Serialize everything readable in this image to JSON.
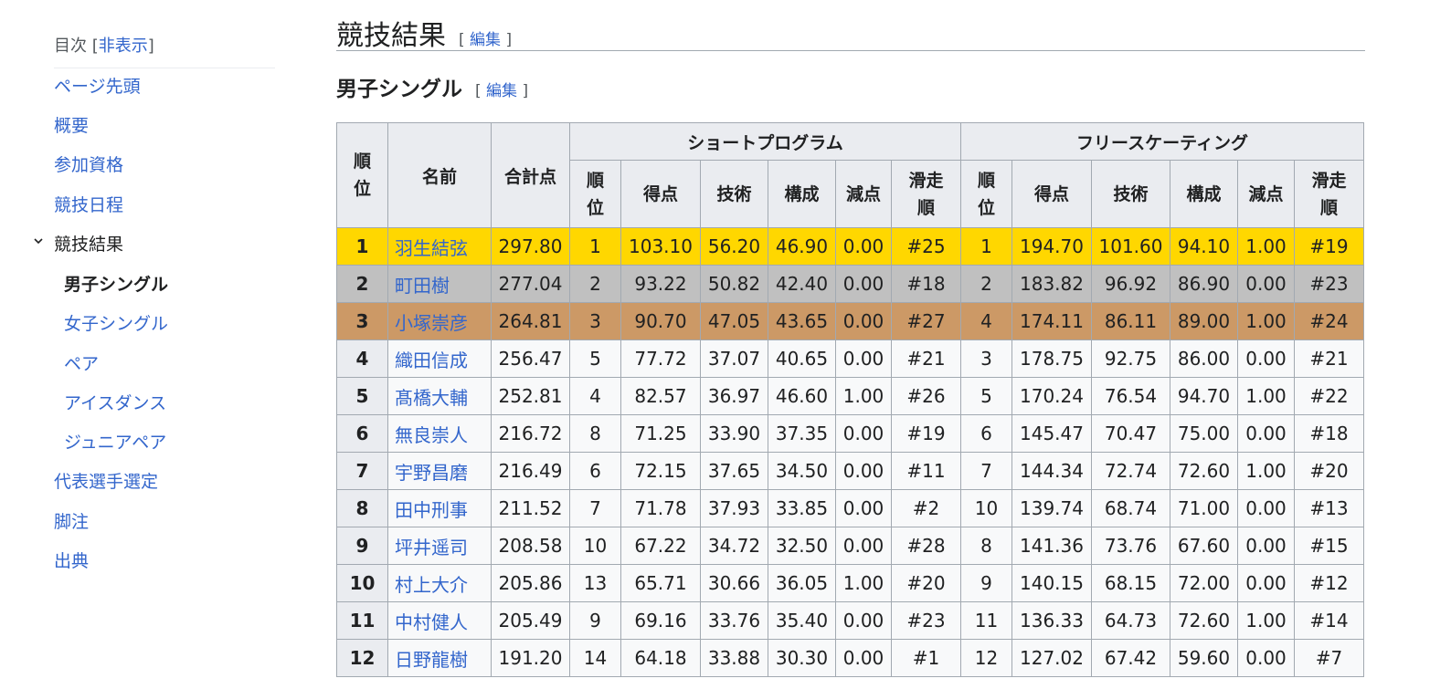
{
  "toc": {
    "title": "目次",
    "toggle_label": "非表示",
    "items": [
      {
        "label": "ページ先頭",
        "level": 1
      },
      {
        "label": "概要",
        "level": 1
      },
      {
        "label": "参加資格",
        "level": 1
      },
      {
        "label": "競技日程",
        "level": 1
      },
      {
        "label": "競技結果",
        "level": 1
      },
      {
        "label": "男子シングル",
        "level": 2
      },
      {
        "label": "女子シングル",
        "level": 2
      },
      {
        "label": "ペア",
        "level": 2
      },
      {
        "label": "アイスダンス",
        "level": 2
      },
      {
        "label": "ジュニアペア",
        "level": 2
      },
      {
        "label": "代表選手選定",
        "level": 1
      },
      {
        "label": "脚注",
        "level": 1
      },
      {
        "label": "出典",
        "level": 1
      }
    ]
  },
  "section": {
    "title": "競技結果",
    "edit_label": "編集"
  },
  "subsection": {
    "title": "男子シングル",
    "edit_label": "編集"
  },
  "table": {
    "headers": {
      "rank": "順位",
      "name": "名前",
      "total": "合計点",
      "sp_group": "ショートプログラム",
      "fs_group": "フリースケーティング",
      "sub": [
        "順位",
        "得点",
        "技術",
        "構成",
        "減点",
        "滑走順"
      ]
    },
    "rows": [
      {
        "rank": "1",
        "name": "羽生結弦",
        "total": "297.80",
        "sp": [
          "1",
          "103.10",
          "56.20",
          "46.90",
          "0.00",
          "#25"
        ],
        "fs": [
          "1",
          "194.70",
          "101.60",
          "94.10",
          "1.00",
          "#19"
        ]
      },
      {
        "rank": "2",
        "name": "町田樹",
        "total": "277.04",
        "sp": [
          "2",
          "93.22",
          "50.82",
          "42.40",
          "0.00",
          "#18"
        ],
        "fs": [
          "2",
          "183.82",
          "96.92",
          "86.90",
          "0.00",
          "#23"
        ]
      },
      {
        "rank": "3",
        "name": "小塚崇彦",
        "total": "264.81",
        "sp": [
          "3",
          "90.70",
          "47.05",
          "43.65",
          "0.00",
          "#27"
        ],
        "fs": [
          "4",
          "174.11",
          "86.11",
          "89.00",
          "1.00",
          "#24"
        ]
      },
      {
        "rank": "4",
        "name": "織田信成",
        "total": "256.47",
        "sp": [
          "5",
          "77.72",
          "37.07",
          "40.65",
          "0.00",
          "#21"
        ],
        "fs": [
          "3",
          "178.75",
          "92.75",
          "86.00",
          "0.00",
          "#21"
        ]
      },
      {
        "rank": "5",
        "name": "髙橋大輔",
        "total": "252.81",
        "sp": [
          "4",
          "82.57",
          "36.97",
          "46.60",
          "1.00",
          "#26"
        ],
        "fs": [
          "5",
          "170.24",
          "76.54",
          "94.70",
          "1.00",
          "#22"
        ]
      },
      {
        "rank": "6",
        "name": "無良崇人",
        "total": "216.72",
        "sp": [
          "8",
          "71.25",
          "33.90",
          "37.35",
          "0.00",
          "#19"
        ],
        "fs": [
          "6",
          "145.47",
          "70.47",
          "75.00",
          "0.00",
          "#18"
        ]
      },
      {
        "rank": "7",
        "name": "宇野昌磨",
        "total": "216.49",
        "sp": [
          "6",
          "72.15",
          "37.65",
          "34.50",
          "0.00",
          "#11"
        ],
        "fs": [
          "7",
          "144.34",
          "72.74",
          "72.60",
          "1.00",
          "#20"
        ]
      },
      {
        "rank": "8",
        "name": "田中刑事",
        "total": "211.52",
        "sp": [
          "7",
          "71.78",
          "37.93",
          "33.85",
          "0.00",
          "#2"
        ],
        "fs": [
          "10",
          "139.74",
          "68.74",
          "71.00",
          "0.00",
          "#13"
        ]
      },
      {
        "rank": "9",
        "name": "坪井遥司",
        "total": "208.58",
        "sp": [
          "10",
          "67.22",
          "34.72",
          "32.50",
          "0.00",
          "#28"
        ],
        "fs": [
          "8",
          "141.36",
          "73.76",
          "67.60",
          "0.00",
          "#15"
        ]
      },
      {
        "rank": "10",
        "name": "村上大介",
        "total": "205.86",
        "sp": [
          "13",
          "65.71",
          "30.66",
          "36.05",
          "1.00",
          "#20"
        ],
        "fs": [
          "9",
          "140.15",
          "68.15",
          "72.00",
          "0.00",
          "#12"
        ]
      },
      {
        "rank": "11",
        "name": "中村健人",
        "total": "205.49",
        "sp": [
          "9",
          "69.16",
          "33.76",
          "35.40",
          "0.00",
          "#23"
        ],
        "fs": [
          "11",
          "136.33",
          "64.73",
          "72.60",
          "1.00",
          "#14"
        ]
      },
      {
        "rank": "12",
        "name": "日野龍樹",
        "total": "191.20",
        "sp": [
          "14",
          "64.18",
          "33.88",
          "30.30",
          "0.00",
          "#1"
        ],
        "fs": [
          "12",
          "127.02",
          "67.42",
          "59.60",
          "0.00",
          "#7"
        ]
      }
    ],
    "medal_colors": {
      "gold": "#ffd700",
      "silver": "#c0c0c0",
      "bronze": "#cc9966"
    }
  }
}
